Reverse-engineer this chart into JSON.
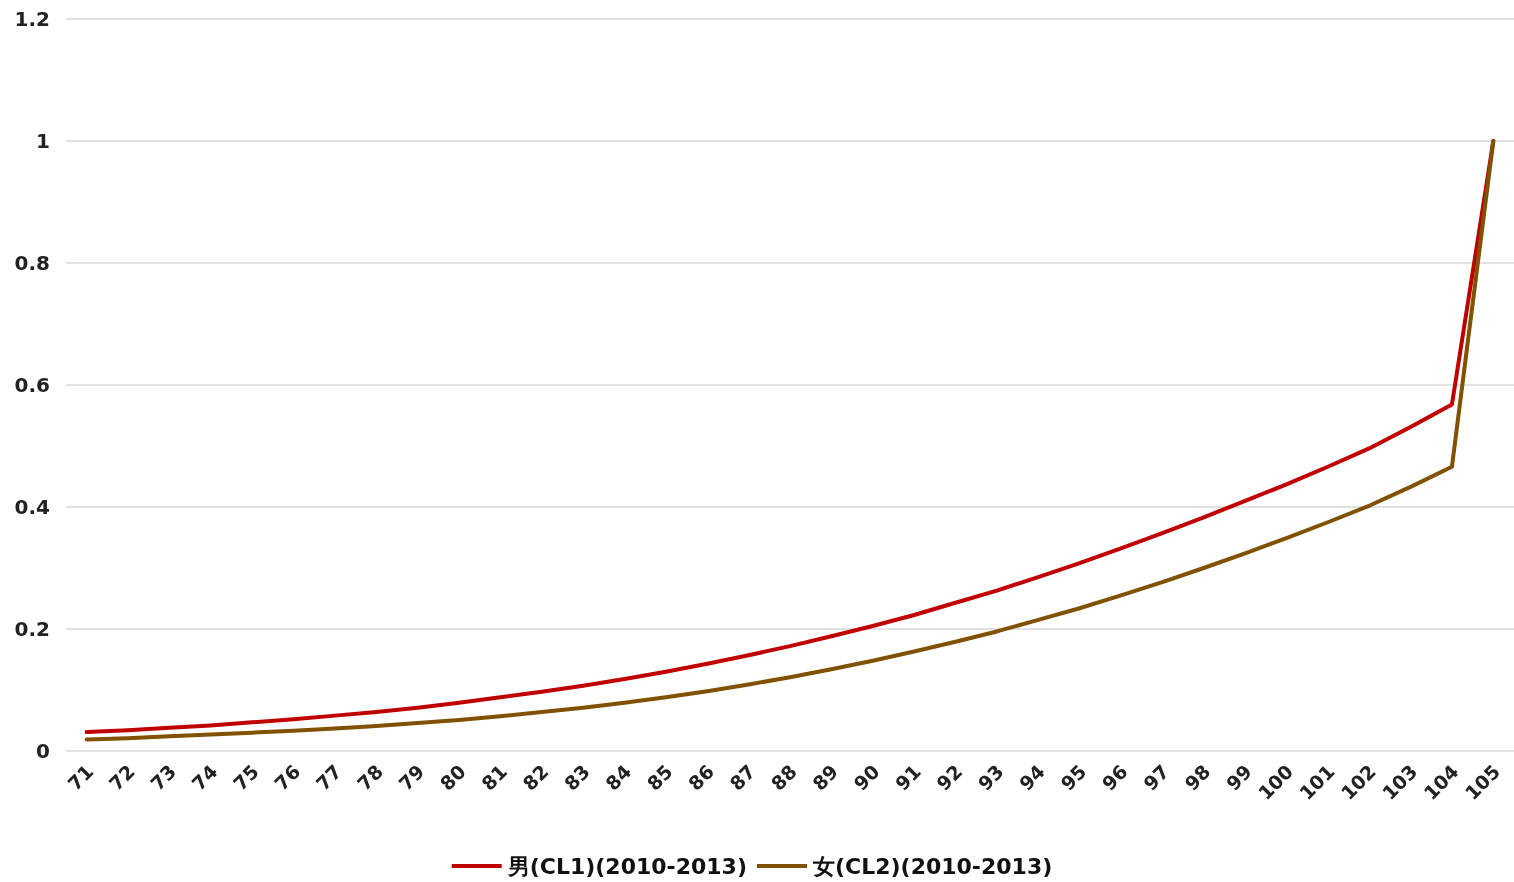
{
  "chart_data": {
    "type": "line",
    "categories": [
      "71",
      "72",
      "73",
      "74",
      "75",
      "76",
      "77",
      "78",
      "79",
      "80",
      "81",
      "82",
      "83",
      "84",
      "85",
      "86",
      "87",
      "88",
      "89",
      "90",
      "91",
      "92",
      "93",
      "94",
      "95",
      "96",
      "97",
      "98",
      "99",
      "100",
      "101",
      "102",
      "103",
      "104",
      "105"
    ],
    "series": [
      {
        "name": "男(CL1)(2010-2013)",
        "color": "#c00000",
        "values": [
          0.031,
          0.034,
          0.038,
          0.042,
          0.047,
          0.052,
          0.058,
          0.064,
          0.071,
          0.079,
          0.088,
          0.097,
          0.107,
          0.118,
          0.13,
          0.143,
          0.157,
          0.172,
          0.188,
          0.205,
          0.223,
          0.243,
          0.263,
          0.285,
          0.308,
          0.332,
          0.357,
          0.383,
          0.41,
          0.437,
          0.466,
          0.496,
          0.531,
          0.568,
          1
        ]
      },
      {
        "name": "女(CL2)(2010-2013)",
        "color": "#7f5100",
        "values": [
          0.019,
          0.021,
          0.024,
          0.027,
          0.03,
          0.033,
          0.037,
          0.041,
          0.046,
          0.051,
          0.057,
          0.064,
          0.071,
          0.079,
          0.088,
          0.098,
          0.109,
          0.121,
          0.134,
          0.148,
          0.163,
          0.179,
          0.196,
          0.215,
          0.234,
          0.255,
          0.277,
          0.3,
          0.324,
          0.349,
          0.375,
          0.402,
          0.433,
          0.466,
          1
        ]
      }
    ],
    "ylim": [
      0,
      1.2
    ],
    "yticks": [
      0,
      0.2,
      0.4,
      0.6,
      0.8,
      1,
      1.2
    ],
    "grid": "y",
    "legend": "bottom"
  }
}
